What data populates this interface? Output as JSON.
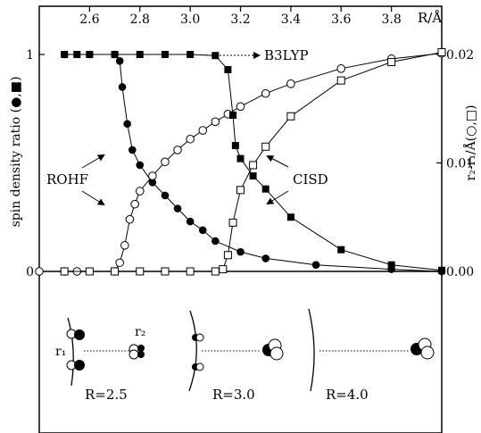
{
  "chart_data": {
    "type": "scatter",
    "x_axis": {
      "label": "R/Å",
      "range": [
        2.4,
        4.0
      ],
      "ticks": [
        "2.6",
        "2.8",
        "3.0",
        "3.2",
        "3.4",
        "3.6",
        "3.8"
      ]
    },
    "y_left": {
      "label": "spin density ratio (●,■)",
      "range": [
        0,
        1
      ],
      "ticks": [
        "0",
        "1"
      ]
    },
    "y_right": {
      "label": "r₂-r₁/Å(○,□)",
      "range": [
        0,
        0.02
      ],
      "ticks": [
        "0.00",
        "0.01",
        "0.02"
      ]
    },
    "series": [
      {
        "key": "rohf_spin",
        "axis": "left",
        "marker": "filled-circle",
        "x": [
          2.5,
          2.6,
          2.7,
          2.72,
          2.73,
          2.75,
          2.77,
          2.8,
          2.85,
          2.9,
          2.95,
          3.0,
          3.05,
          3.1,
          3.2,
          3.3,
          3.5,
          3.8,
          4.0
        ],
        "y": [
          1.0,
          1.0,
          1.0,
          0.97,
          0.85,
          0.68,
          0.56,
          0.49,
          0.41,
          0.35,
          0.29,
          0.23,
          0.19,
          0.14,
          0.09,
          0.06,
          0.03,
          0.01,
          0.0
        ]
      },
      {
        "key": "rohf_r",
        "axis": "right",
        "marker": "open-circle",
        "x": [
          2.4,
          2.5,
          2.55,
          2.7,
          2.72,
          2.74,
          2.76,
          2.78,
          2.8,
          2.85,
          2.9,
          2.95,
          3.0,
          3.05,
          3.1,
          3.15,
          3.2,
          3.3,
          3.4,
          3.6,
          3.8,
          4.0
        ],
        "y": [
          0.0,
          0.0,
          0.0,
          0.0,
          0.0008,
          0.0024,
          0.0048,
          0.0062,
          0.0074,
          0.0088,
          0.0101,
          0.0112,
          0.0122,
          0.013,
          0.0138,
          0.0145,
          0.0152,
          0.0164,
          0.0173,
          0.0187,
          0.0196,
          0.0201
        ]
      },
      {
        "key": "b3lyp_spin",
        "axis": "left",
        "marker": "filled-square",
        "x": [
          2.5,
          2.55,
          2.6,
          2.7,
          2.8,
          2.9,
          3.0,
          3.1,
          3.15,
          3.17,
          3.18,
          3.2,
          3.25,
          3.3,
          3.4,
          3.6,
          3.8,
          4.0
        ],
        "y": [
          1.0,
          1.0,
          1.0,
          1.0,
          1.0,
          1.0,
          1.0,
          0.995,
          0.93,
          0.72,
          0.58,
          0.52,
          0.44,
          0.38,
          0.25,
          0.1,
          0.03,
          0.005
        ]
      },
      {
        "key": "cisd_r",
        "axis": "right",
        "marker": "open-square",
        "x": [
          2.5,
          2.6,
          2.7,
          2.8,
          2.9,
          3.0,
          3.1,
          3.13,
          3.15,
          3.17,
          3.2,
          3.25,
          3.3,
          3.4,
          3.6,
          3.8,
          4.0
        ],
        "y": [
          0.0,
          0.0,
          0.0,
          0.0,
          0.0,
          0.0,
          0.0,
          0.0002,
          0.0015,
          0.0045,
          0.0075,
          0.0098,
          0.0115,
          0.0143,
          0.0176,
          0.0193,
          0.0202
        ]
      }
    ],
    "annotations": [
      "B3LYP",
      "ROHF",
      "CISD"
    ],
    "inset": {
      "labels": [
        "r₁",
        "r₂",
        "R=2.5",
        "R=3.0",
        "R=4.0"
      ]
    }
  }
}
